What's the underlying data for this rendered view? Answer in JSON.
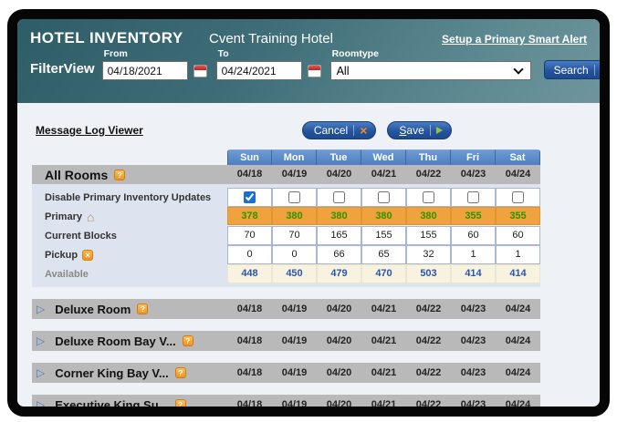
{
  "header": {
    "title": "HOTEL INVENTORY",
    "hotel_name": "Cvent Training Hotel",
    "smart_alert_link": "Setup a Primary Smart Alert",
    "filter_label": "FilterView",
    "from_label": "From",
    "from_value": "04/18/2021",
    "to_label": "To",
    "to_value": "04/24/2021",
    "roomtype_label": "Roomtype",
    "roomtype_value": "All",
    "search_label": "Search"
  },
  "toolbar": {
    "message_log_link": "Message Log Viewer",
    "cancel_label": "Cancel",
    "save_label": "Save"
  },
  "table": {
    "day_headers": [
      "Sun",
      "Mon",
      "Tue",
      "Wed",
      "Thu",
      "Fri",
      "Sat"
    ],
    "dates": [
      "04/18",
      "04/19",
      "04/20",
      "04/21",
      "04/22",
      "04/23",
      "04/24"
    ],
    "all_rooms": {
      "title": "All Rooms",
      "disable_label": "Disable Primary Inventory Updates",
      "checkboxes": [
        true,
        false,
        false,
        false,
        false,
        false,
        false
      ],
      "primary_label": "Primary",
      "primary": [
        378,
        380,
        380,
        380,
        380,
        355,
        355
      ],
      "current_blocks_label": "Current Blocks",
      "current_blocks": [
        70,
        70,
        165,
        155,
        155,
        60,
        60
      ],
      "pickup_label": "Pickup",
      "pickup": [
        0,
        0,
        66,
        65,
        32,
        1,
        1
      ],
      "available_label": "Available",
      "available": [
        448,
        450,
        479,
        470,
        503,
        414,
        414
      ]
    },
    "sections": [
      {
        "title": "Deluxe Room"
      },
      {
        "title": "Deluxe Room Bay V..."
      },
      {
        "title": "Corner King Bay V..."
      },
      {
        "title": "Executive King Su..."
      }
    ]
  },
  "colors": {
    "header_teal": "#3f6d77",
    "day_header_blue": "#4d7fc1",
    "band_gray": "#b9b9b9",
    "primary_orange": "#efa23d",
    "primary_green": "#2f9400",
    "available_cream": "#f8f2e1",
    "available_blue": "#2a57a8",
    "button_blue": "#25549c",
    "icon_orange": "#ee9421",
    "left_column": "#dde3ef",
    "body_bg": "#eef1f5"
  }
}
